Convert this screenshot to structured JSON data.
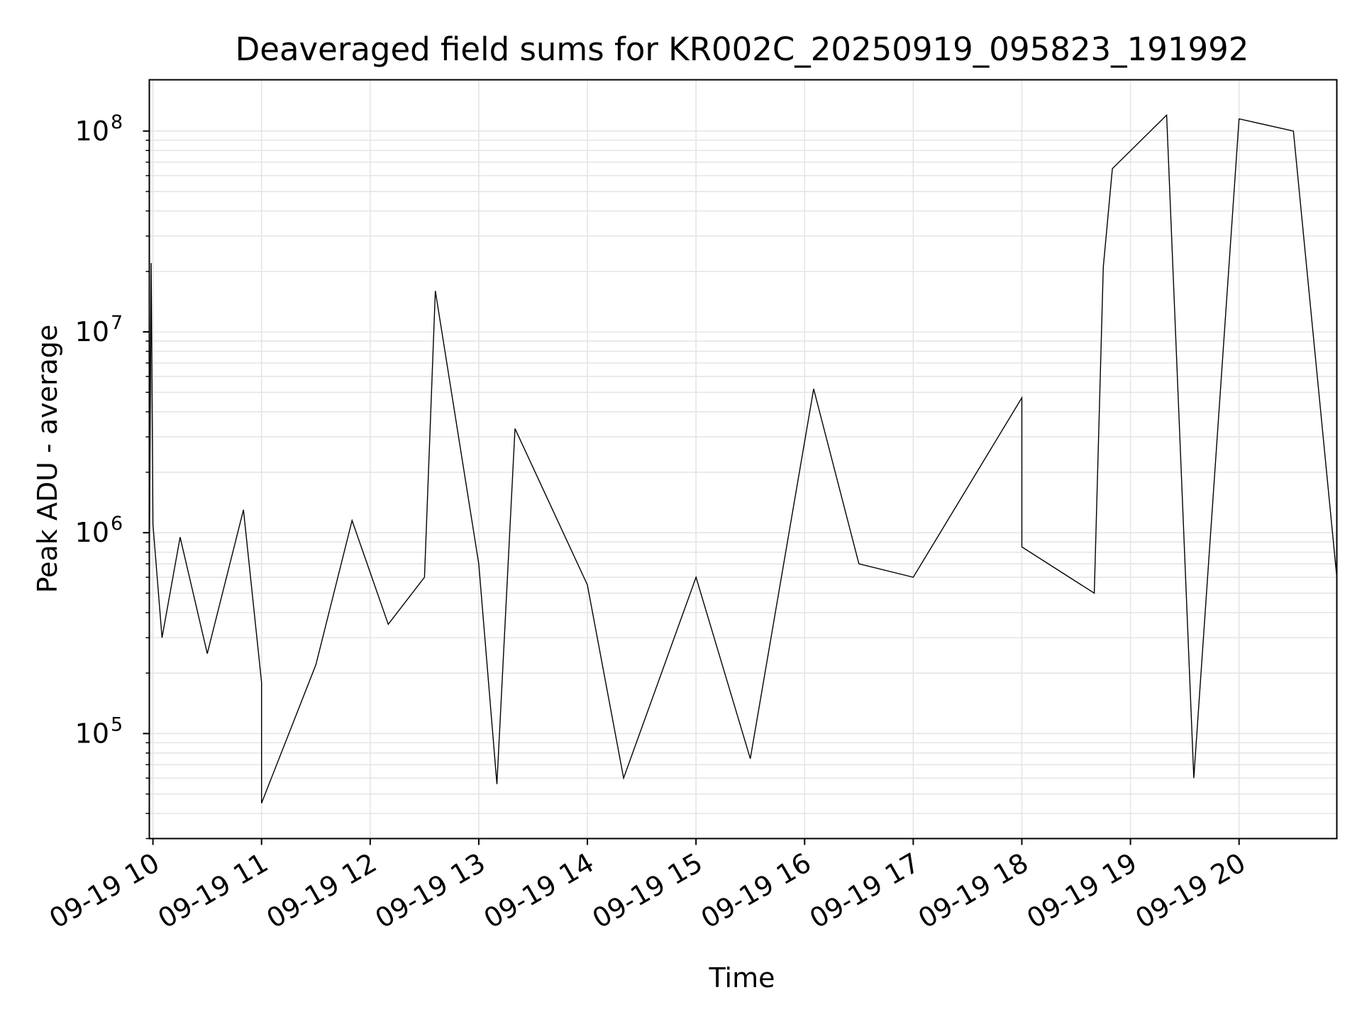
{
  "chart_data": {
    "type": "line",
    "title": "Deaveraged field sums for KR002C_20250919_095823_191992",
    "xlabel": "Time",
    "ylabel": "Peak ADU - average",
    "y_scale": "log",
    "ylim": [
      30000,
      180000000
    ],
    "xlim": [
      "2025-09-19 09:58",
      "2025-09-19 20:54"
    ],
    "grid": true,
    "legend": "none",
    "line_color": "#000000",
    "grid_color": "#e5e5e5",
    "x_ticks": [
      {
        "value": "2025-09-19 10:00",
        "label": "09-19 10"
      },
      {
        "value": "2025-09-19 11:00",
        "label": "09-19 11"
      },
      {
        "value": "2025-09-19 12:00",
        "label": "09-19 12"
      },
      {
        "value": "2025-09-19 13:00",
        "label": "09-19 13"
      },
      {
        "value": "2025-09-19 14:00",
        "label": "09-19 14"
      },
      {
        "value": "2025-09-19 15:00",
        "label": "09-19 15"
      },
      {
        "value": "2025-09-19 16:00",
        "label": "09-19 16"
      },
      {
        "value": "2025-09-19 17:00",
        "label": "09-19 17"
      },
      {
        "value": "2025-09-19 18:00",
        "label": "09-19 18"
      },
      {
        "value": "2025-09-19 19:00",
        "label": "09-19 19"
      },
      {
        "value": "2025-09-19 20:00",
        "label": "09-19 20"
      }
    ],
    "y_ticks": [
      {
        "value": 100000,
        "base": "10",
        "exp": "5"
      },
      {
        "value": 1000000,
        "base": "10",
        "exp": "6"
      },
      {
        "value": 10000000,
        "base": "10",
        "exp": "7"
      },
      {
        "value": 100000000,
        "base": "10",
        "exp": "8"
      }
    ],
    "series": [
      {
        "points": [
          [
            "2025-09-19 09:58",
            600000
          ],
          [
            "2025-09-19 09:59",
            22000000
          ],
          [
            "2025-09-19 10:00",
            1100000
          ],
          [
            "2025-09-19 10:05",
            300000
          ],
          [
            "2025-09-19 10:15",
            950000
          ],
          [
            "2025-09-19 10:30",
            250000
          ],
          [
            "2025-09-19 10:50",
            1300000
          ],
          [
            "2025-09-19 11:00",
            180000
          ],
          [
            "2025-09-19 11:00",
            45000
          ],
          [
            "2025-09-19 11:30",
            220000
          ],
          [
            "2025-09-19 11:50",
            1150000
          ],
          [
            "2025-09-19 12:10",
            350000
          ],
          [
            "2025-09-19 12:30",
            600000
          ],
          [
            "2025-09-19 12:36",
            16000000
          ],
          [
            "2025-09-19 13:00",
            700000
          ],
          [
            "2025-09-19 13:10",
            56000
          ],
          [
            "2025-09-19 13:20",
            3300000
          ],
          [
            "2025-09-19 14:00",
            550000
          ],
          [
            "2025-09-19 14:20",
            60000
          ],
          [
            "2025-09-19 15:00",
            600000
          ],
          [
            "2025-09-19 15:30",
            75000
          ],
          [
            "2025-09-19 16:05",
            5200000
          ],
          [
            "2025-09-19 16:30",
            700000
          ],
          [
            "2025-09-19 17:00",
            600000
          ],
          [
            "2025-09-19 18:00",
            4700000
          ],
          [
            "2025-09-19 18:00",
            850000
          ],
          [
            "2025-09-19 18:40",
            500000
          ],
          [
            "2025-09-19 18:45",
            21000000
          ],
          [
            "2025-09-19 18:50",
            65000000
          ],
          [
            "2025-09-19 19:20",
            120000000
          ],
          [
            "2025-09-19 19:35",
            60000
          ],
          [
            "2025-09-19 20:00",
            115000000
          ],
          [
            "2025-09-19 20:30",
            100000000
          ],
          [
            "2025-09-19 20:54",
            600000
          ]
        ]
      }
    ]
  }
}
